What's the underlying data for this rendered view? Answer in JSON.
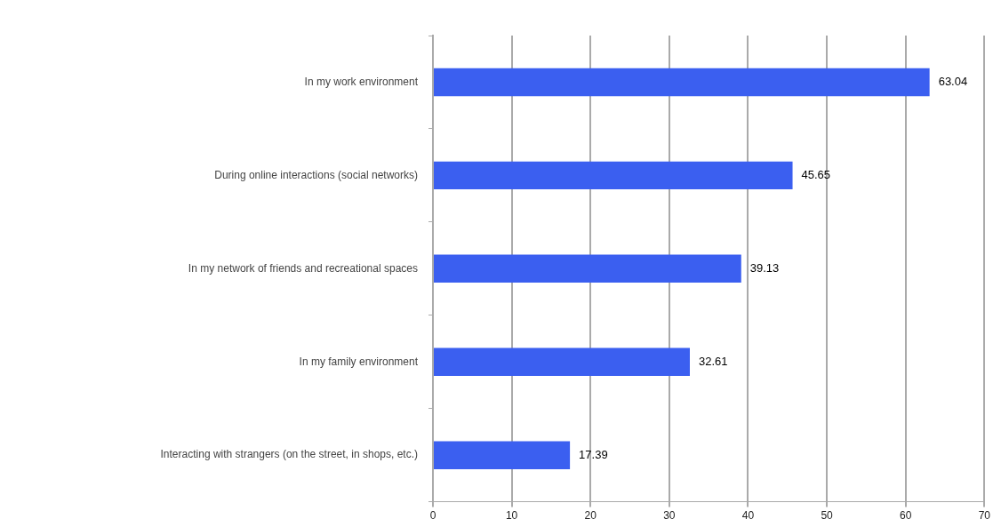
{
  "chart_data": {
    "type": "bar",
    "orientation": "horizontal",
    "categories": [
      "In my work environment",
      "During online interactions (social networks)",
      "In my network of friends and recreational spaces",
      "In my family environment",
      "Interacting with strangers (on the street, in shops, etc.)"
    ],
    "values": [
      63.04,
      45.65,
      39.13,
      32.61,
      17.39
    ],
    "color": "#3b5ff0",
    "xlim": [
      0,
      70
    ],
    "xticks": [
      0,
      10,
      20,
      30,
      40,
      50,
      60,
      70
    ],
    "grid": "x",
    "legend": false,
    "data_labels": true
  }
}
